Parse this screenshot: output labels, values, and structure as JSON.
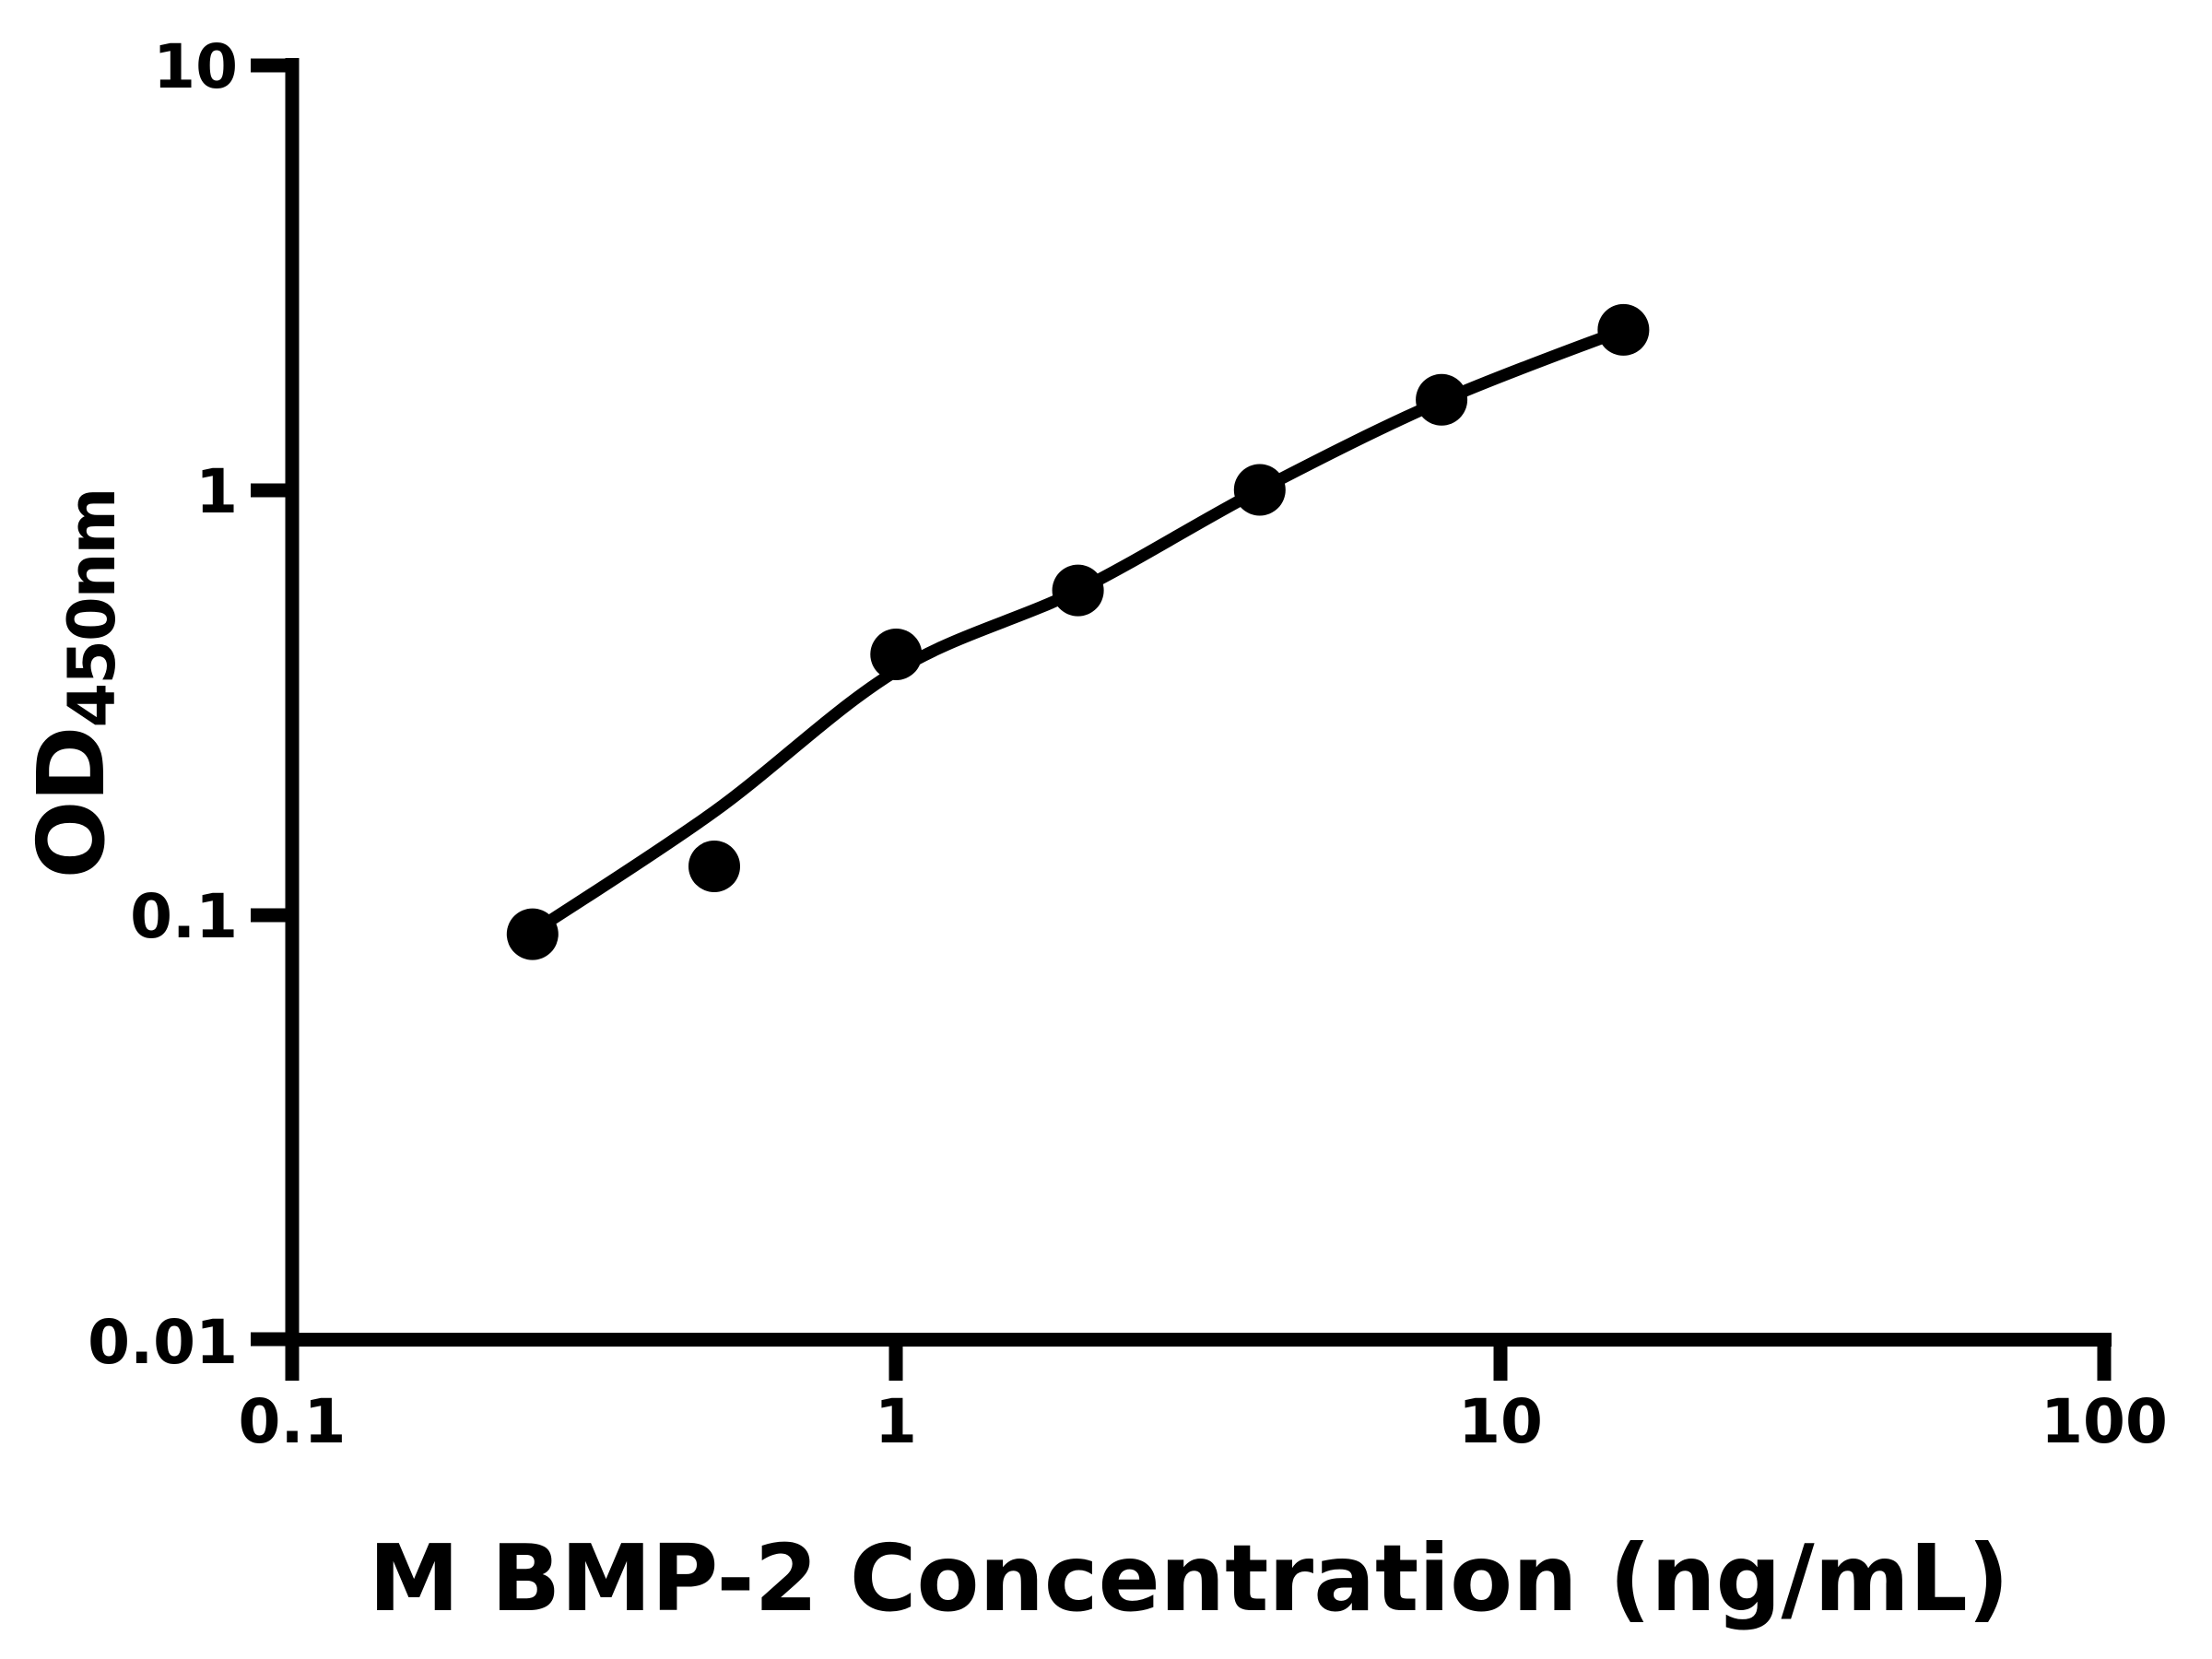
{
  "figure": {
    "background": "#ffffff",
    "ink_color": "#000000"
  },
  "chart_data": {
    "type": "scatter",
    "title": "",
    "xlabel": "M BMP-2 Concentration (ng/mL)",
    "ylabel_main": "OD",
    "ylabel_subscript": "450nm",
    "x_scale": "log",
    "y_scale": "log",
    "xlim": [
      0.1,
      100
    ],
    "ylim": [
      0.01,
      10
    ],
    "grid": false,
    "legend_position": "none",
    "x_ticks": [
      "0.1",
      "1",
      "10",
      "100"
    ],
    "y_ticks": [
      "10",
      "1",
      "0.1",
      "0.01"
    ],
    "series": [
      {
        "name": "standard curve measurements",
        "marker": "filled-circle",
        "color": "#000000",
        "x": [
          0.25,
          0.5,
          1,
          2,
          4,
          8,
          16
        ],
        "y": [
          0.09,
          0.13,
          0.41,
          0.58,
          1.0,
          1.63,
          2.38
        ]
      }
    ],
    "fit_curve": {
      "name": "fitted standard curve",
      "color": "#000000",
      "x": [
        0.25,
        0.5,
        1,
        2,
        4,
        8,
        16
      ],
      "y": [
        0.091,
        0.175,
        0.375,
        0.58,
        1.0,
        1.62,
        2.38
      ]
    }
  }
}
